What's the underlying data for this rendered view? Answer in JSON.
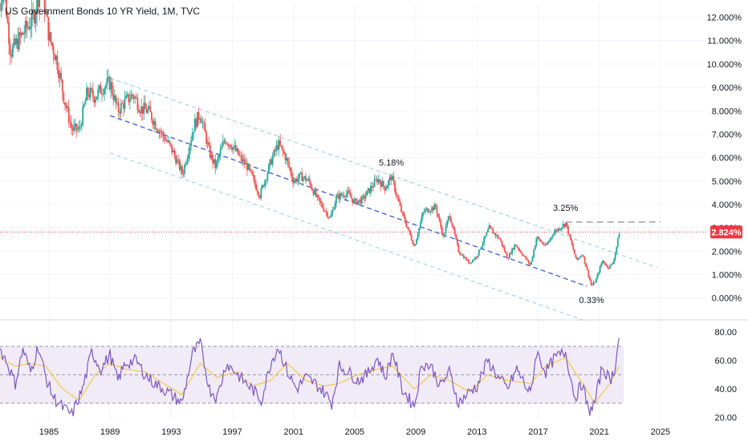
{
  "title": "US Government Bonds 10 YR Yield, 1M, TVC",
  "colors": {
    "up": "#26a69a",
    "down": "#ef5350",
    "channel_mid": "#3a5bd9",
    "channel_outer": "#8ecbe6",
    "rsi_line": "#7e57c2",
    "rsi_ma": "#f2c94c",
    "rsi_band": "#ede7f6",
    "price_line": "#f23645",
    "resistance": "#b2b5be"
  },
  "current_price_label": "2.824%",
  "annotations": [
    {
      "label": "5.18%",
      "year": 2007.4,
      "value": 5.18,
      "offset": "above"
    },
    {
      "label": "3.25%",
      "year": 2018.8,
      "value": 3.25,
      "offset": "above"
    },
    {
      "label": "0.33%",
      "year": 2020.5,
      "value": 0.33,
      "offset": "below"
    }
  ],
  "chart_data": [
    {
      "type": "candlestick",
      "title": "US Government Bonds 10 YR Yield, 1M, TVC",
      "ylabel": "%",
      "y_ticks": [
        "12.000%",
        "11.000%",
        "10.000%",
        "9.000%",
        "8.000%",
        "7.000%",
        "6.000%",
        "5.000%",
        "4.000%",
        "3.000%",
        "2.000%",
        "1.000%",
        "0.000%"
      ],
      "y_tick_values": [
        12,
        11,
        10,
        9,
        8,
        7,
        6,
        5,
        4,
        3,
        2,
        1,
        0
      ],
      "ylim": [
        -0.9,
        12.6
      ],
      "x_ticks": [
        "1985",
        "1989",
        "1993",
        "1997",
        "2001",
        "2005",
        "2009",
        "2013",
        "2017",
        "2021",
        "2025"
      ],
      "x_tick_values": [
        1985,
        1989,
        1993,
        1997,
        2001,
        2005,
        2009,
        2013,
        2017,
        2021,
        2025
      ],
      "xlim": [
        1981.8,
        2028.0
      ],
      "yield_path": [
        [
          1981.8,
          12.3
        ],
        [
          1982.0,
          13.6
        ],
        [
          1982.5,
          10.5
        ],
        [
          1983.0,
          11.0
        ],
        [
          1983.5,
          11.5
        ],
        [
          1984.0,
          12.0
        ],
        [
          1984.5,
          13.5
        ],
        [
          1985.0,
          11.2
        ],
        [
          1985.5,
          10.2
        ],
        [
          1986.0,
          8.5
        ],
        [
          1986.5,
          7.2
        ],
        [
          1987.0,
          7.2
        ],
        [
          1987.5,
          8.8
        ],
        [
          1988.0,
          8.6
        ],
        [
          1988.5,
          9.0
        ],
        [
          1989.0,
          9.2
        ],
        [
          1989.5,
          8.0
        ],
        [
          1990.0,
          8.4
        ],
        [
          1990.5,
          8.7
        ],
        [
          1991.0,
          8.1
        ],
        [
          1991.5,
          8.0
        ],
        [
          1992.0,
          7.4
        ],
        [
          1992.5,
          6.9
        ],
        [
          1993.0,
          6.4
        ],
        [
          1993.75,
          5.3
        ],
        [
          1994.5,
          7.4
        ],
        [
          1994.9,
          7.9
        ],
        [
          1995.5,
          6.2
        ],
        [
          1995.9,
          5.6
        ],
        [
          1996.5,
          6.8
        ],
        [
          1997.0,
          6.5
        ],
        [
          1997.5,
          6.0
        ],
        [
          1998.0,
          5.6
        ],
        [
          1998.8,
          4.4
        ],
        [
          1999.5,
          5.8
        ],
        [
          2000.0,
          6.6
        ],
        [
          2000.5,
          6.0
        ],
        [
          2001.0,
          5.0
        ],
        [
          2001.5,
          5.2
        ],
        [
          2002.0,
          5.0
        ],
        [
          2002.5,
          4.3
        ],
        [
          2003.4,
          3.4
        ],
        [
          2003.8,
          4.3
        ],
        [
          2004.5,
          4.5
        ],
        [
          2005.0,
          4.1
        ],
        [
          2005.5,
          4.2
        ],
        [
          2006.5,
          5.1
        ],
        [
          2007.0,
          4.7
        ],
        [
          2007.4,
          5.2
        ],
        [
          2008.0,
          3.8
        ],
        [
          2008.9,
          2.2
        ],
        [
          2009.5,
          3.7
        ],
        [
          2010.3,
          3.9
        ],
        [
          2010.8,
          2.6
        ],
        [
          2011.2,
          3.6
        ],
        [
          2011.8,
          2.0
        ],
        [
          2012.5,
          1.5
        ],
        [
          2013.0,
          1.8
        ],
        [
          2013.8,
          3.0
        ],
        [
          2014.5,
          2.5
        ],
        [
          2015.0,
          1.7
        ],
        [
          2015.5,
          2.3
        ],
        [
          2016.5,
          1.4
        ],
        [
          2016.9,
          2.6
        ],
        [
          2017.5,
          2.2
        ],
        [
          2018.0,
          2.8
        ],
        [
          2018.8,
          3.2
        ],
        [
          2019.5,
          1.6
        ],
        [
          2019.9,
          1.9
        ],
        [
          2020.5,
          0.5
        ],
        [
          2020.8,
          0.8
        ],
        [
          2021.2,
          1.6
        ],
        [
          2021.6,
          1.3
        ],
        [
          2021.9,
          1.5
        ],
        [
          2022.2,
          2.4
        ],
        [
          2022.3,
          2.82
        ]
      ],
      "channel": {
        "mid": [
          [
            1989.0,
            7.8
          ],
          [
            2020.2,
            0.5
          ]
        ],
        "upper": [
          [
            1989.0,
            9.4
          ],
          [
            2024.8,
            1.3
          ]
        ],
        "lower": [
          [
            1989.0,
            6.2
          ],
          [
            2020.2,
            -1.0
          ]
        ]
      },
      "resistance_line": {
        "value": 3.25,
        "from": 2018.8,
        "to": 2025.0
      },
      "current_value": 2.824
    },
    {
      "type": "line",
      "title": "",
      "ylabel": "RSI",
      "y_ticks": [
        "80.00",
        "60.00",
        "40.00",
        "20.00"
      ],
      "y_tick_values": [
        80,
        60,
        40,
        20
      ],
      "ylim": [
        17,
        88
      ],
      "bands": [
        70,
        50,
        30
      ],
      "series": [
        {
          "name": "",
          "points": [
            [
              1981.8,
              68
            ],
            [
              1982.2,
              60
            ],
            [
              1982.8,
              44
            ],
            [
              1983.3,
              68
            ],
            [
              1983.8,
              52
            ],
            [
              1984.3,
              70
            ],
            [
              1984.8,
              48
            ],
            [
              1985.3,
              34
            ],
            [
              1985.9,
              27
            ],
            [
              1986.5,
              22
            ],
            [
              1987.2,
              40
            ],
            [
              1987.8,
              66
            ],
            [
              1988.4,
              54
            ],
            [
              1989.0,
              64
            ],
            [
              1989.5,
              46
            ],
            [
              1990.0,
              58
            ],
            [
              1990.7,
              60
            ],
            [
              1991.3,
              50
            ],
            [
              1991.9,
              44
            ],
            [
              1992.5,
              40
            ],
            [
              1993.0,
              36
            ],
            [
              1993.7,
              30
            ],
            [
              1994.4,
              65
            ],
            [
              1994.9,
              72
            ],
            [
              1995.5,
              40
            ],
            [
              1996.0,
              34
            ],
            [
              1996.6,
              58
            ],
            [
              1997.2,
              52
            ],
            [
              1997.7,
              46
            ],
            [
              1998.3,
              40
            ],
            [
              1998.9,
              32
            ],
            [
              1999.5,
              58
            ],
            [
              2000.0,
              70
            ],
            [
              2000.6,
              52
            ],
            [
              2001.2,
              40
            ],
            [
              2001.8,
              48
            ],
            [
              2002.4,
              44
            ],
            [
              2003.0,
              38
            ],
            [
              2003.5,
              30
            ],
            [
              2004.0,
              56
            ],
            [
              2004.6,
              52
            ],
            [
              2005.2,
              46
            ],
            [
              2005.8,
              50
            ],
            [
              2006.5,
              62
            ],
            [
              2007.0,
              48
            ],
            [
              2007.5,
              66
            ],
            [
              2008.1,
              40
            ],
            [
              2008.9,
              28
            ],
            [
              2009.4,
              58
            ],
            [
              2010.0,
              56
            ],
            [
              2010.6,
              42
            ],
            [
              2011.2,
              52
            ],
            [
              2011.8,
              30
            ],
            [
              2012.5,
              38
            ],
            [
              2013.0,
              42
            ],
            [
              2013.7,
              60
            ],
            [
              2014.4,
              48
            ],
            [
              2015.0,
              40
            ],
            [
              2015.6,
              54
            ],
            [
              2016.5,
              36
            ],
            [
              2016.9,
              66
            ],
            [
              2017.5,
              52
            ],
            [
              2018.1,
              62
            ],
            [
              2018.8,
              66
            ],
            [
              2019.4,
              34
            ],
            [
              2019.9,
              44
            ],
            [
              2020.3,
              24
            ],
            [
              2020.7,
              30
            ],
            [
              2021.2,
              56
            ],
            [
              2021.7,
              46
            ],
            [
              2022.0,
              54
            ],
            [
              2022.3,
              76
            ]
          ]
        },
        {
          "name": "",
          "points": [
            [
              1981.8,
              62
            ],
            [
              1982.8,
              56
            ],
            [
              1983.8,
              58
            ],
            [
              1984.8,
              56
            ],
            [
              1985.9,
              40
            ],
            [
              1987.0,
              32
            ],
            [
              1988.0,
              50
            ],
            [
              1989.0,
              58
            ],
            [
              1990.0,
              54
            ],
            [
              1991.3,
              52
            ],
            [
              1992.5,
              44
            ],
            [
              1993.7,
              36
            ],
            [
              1994.9,
              58
            ],
            [
              1996.0,
              48
            ],
            [
              1997.2,
              52
            ],
            [
              1998.3,
              42
            ],
            [
              1999.5,
              46
            ],
            [
              2000.6,
              58
            ],
            [
              2001.8,
              46
            ],
            [
              2003.0,
              42
            ],
            [
              2004.0,
              44
            ],
            [
              2005.2,
              50
            ],
            [
              2006.5,
              54
            ],
            [
              2007.5,
              56
            ],
            [
              2008.9,
              40
            ],
            [
              2010.0,
              50
            ],
            [
              2011.2,
              46
            ],
            [
              2012.5,
              38
            ],
            [
              2013.7,
              50
            ],
            [
              2015.0,
              46
            ],
            [
              2016.5,
              44
            ],
            [
              2017.5,
              56
            ],
            [
              2018.8,
              62
            ],
            [
              2019.9,
              44
            ],
            [
              2020.7,
              30
            ],
            [
              2021.7,
              44
            ],
            [
              2022.3,
              56
            ]
          ]
        }
      ]
    }
  ]
}
